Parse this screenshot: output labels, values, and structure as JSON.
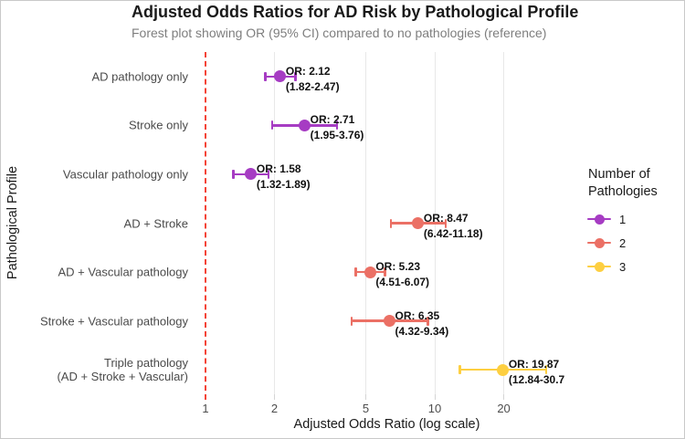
{
  "header": {
    "title": "Adjusted Odds Ratios for AD Risk by Pathological Profile",
    "subtitle": "Forest plot showing OR (95% CI) compared to no pathologies (reference)"
  },
  "chart_data": {
    "type": "scatter",
    "subtype": "forest-plot",
    "xlabel": "Adjusted Odds Ratio (log scale)",
    "ylabel": "Pathological Profile",
    "x_scale": "log10",
    "x_ticks": [
      1,
      2,
      5,
      10,
      20
    ],
    "xlim": [
      0.9,
      38
    ],
    "grid": "vertical-only",
    "reference_line": {
      "x": 1,
      "style": "dashed",
      "color": "#f44336"
    },
    "colors": {
      "1": "#a63cc3",
      "2": "#eb7065",
      "3": "#fdcf41"
    },
    "rows": [
      {
        "label": "AD pathology only",
        "or": 2.12,
        "ci_low": 1.82,
        "ci_high": 2.47,
        "group": "1",
        "or_label": "OR: 2.12",
        "ci_label": "(1.82-2.47)"
      },
      {
        "label": "Stroke only",
        "or": 2.71,
        "ci_low": 1.95,
        "ci_high": 3.76,
        "group": "1",
        "or_label": "OR: 2.71",
        "ci_label": "(1.95-3.76)"
      },
      {
        "label": "Vascular pathology only",
        "or": 1.58,
        "ci_low": 1.32,
        "ci_high": 1.89,
        "group": "1",
        "or_label": "OR: 1.58",
        "ci_label": "(1.32-1.89)"
      },
      {
        "label": "AD + Stroke",
        "or": 8.47,
        "ci_low": 6.42,
        "ci_high": 11.18,
        "group": "2",
        "or_label": "OR: 8.47",
        "ci_label": "(6.42-11.18)"
      },
      {
        "label": "AD + Vascular pathology",
        "or": 5.23,
        "ci_low": 4.51,
        "ci_high": 6.07,
        "group": "2",
        "or_label": "OR: 5.23",
        "ci_label": "(4.51-6.07)"
      },
      {
        "label": "Stroke + Vascular pathology",
        "or": 6.35,
        "ci_low": 4.32,
        "ci_high": 9.34,
        "group": "2",
        "or_label": "OR: 6.35",
        "ci_label": "(4.32-9.34)"
      },
      {
        "label": "Triple pathology\n(AD + Stroke + Vascular)",
        "or": 19.87,
        "ci_low": 12.84,
        "ci_high": 30.7,
        "group": "3",
        "or_label": "OR: 19.87",
        "ci_label": "(12.84-30.7"
      }
    ],
    "legend": {
      "title": "Number of\nPathologies",
      "position": "right",
      "entries": [
        {
          "label": "1",
          "color": "#a63cc3"
        },
        {
          "label": "2",
          "color": "#eb7065"
        },
        {
          "label": "3",
          "color": "#fdcf41"
        }
      ]
    }
  }
}
